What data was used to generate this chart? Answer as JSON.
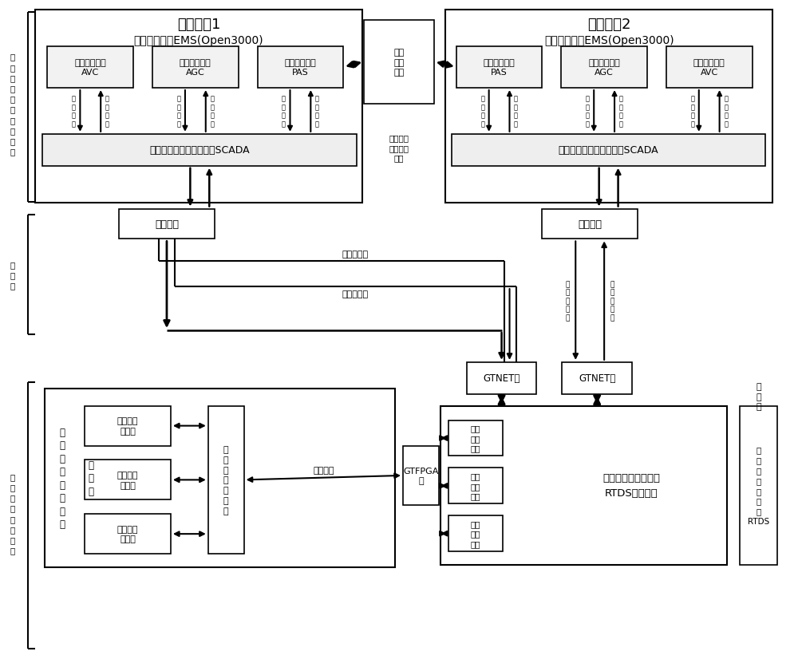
{
  "fig_w": 10.0,
  "fig_h": 8.37,
  "left_label1": "多\n级\n调\n度\n控\n制\n系\n统\n仿\n真",
  "left_label2": "以\n太\n网",
  "left_label3": "详\n细\n动\n力\n系\n统\n仿\n真",
  "sys1_title": "调度系统1",
  "sys1_subtitle": "能量管理系统EMS(Open3000)",
  "sys2_title": "调度系统2",
  "sys2_subtitle": "能量管理系统EMS(Open3000)",
  "avc_label": "自动电压控制\nAVC",
  "agc_label": "自动发电控制\nAGC",
  "pas_label": "高级应用系统\nPAS",
  "scada_label": "数据采集与监视控制系统SCADA",
  "wan_label": "广域\n网模\n拟器",
  "ctrl_center_label": "控制中心\n之间信息\n通讯",
  "guiyue_label": "规约转换",
  "gtnet_label": "GTNET卡",
  "gtfpga_label": "GTFPGA\n卡",
  "rtds_box_label": "等值后的交直流系统\nRTDS仿真模型",
  "rtds_side_label": "实\n时\n数\n字\n仿\n真\n器\nRTDS",
  "elec_side_label": "电\n网\n侧",
  "power_plant_outer_label": "电\n厂\n详\n细\n仿\n真\n平\n台",
  "power_side_label": "电\n源\n侧",
  "fire_sim": "火电仿真\n服务器",
  "water_sim": "水电仿真\n服务器",
  "wind_sim": "风电仿真\n服务器",
  "source_coord": "源\n侧\n协\n调\n服\n务\n器",
  "fiber_label": "光纤通讯",
  "yaoce_yaoxin": "遥测、遥信",
  "yaodiao_yaokong": "遥调、遥控",
  "yaodiao_v": "遥\n调\n、\n遥\n控",
  "yaomeas_v": "遥\n测\n、\n遥\n信",
  "tiaoya_zhiling": "调\n压\n指\n令",
  "shishi_liangce": "实\n时\n量\n测",
  "tiaopinzhiling": "调\n频\n指\n令",
  "tiaokongzhiling": "调\n控\n指\n令",
  "huodian_jiekou": "火电\n接口\n模型",
  "shuidian_jiekou": "水电\n接口\n模型",
  "fengdian_jiekou": "风电\n接口\n模型"
}
